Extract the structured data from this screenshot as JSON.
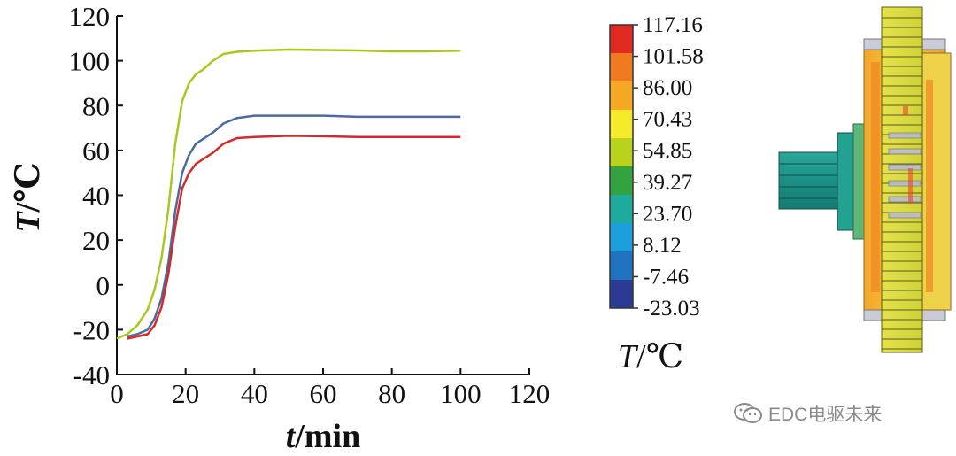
{
  "chart_data": {
    "type": "line",
    "xlabel_var": "t",
    "xlabel_unit": "/min",
    "ylabel_var": "T",
    "ylabel_unit": "/℃",
    "xlim": [
      0,
      120
    ],
    "ylim": [
      -40,
      120
    ],
    "xticks": [
      0,
      20,
      40,
      60,
      80,
      100,
      120
    ],
    "yticks": [
      -40,
      -20,
      0,
      20,
      40,
      60,
      80,
      100,
      120
    ],
    "series": [
      {
        "name": "green",
        "color": "#a8c81e",
        "x": [
          0,
          3,
          6,
          9,
          11,
          13,
          15,
          17,
          19,
          21,
          23,
          25,
          28,
          31,
          35,
          40,
          50,
          60,
          70,
          80,
          90,
          100
        ],
        "y": [
          -24,
          -22,
          -18,
          -11,
          -2,
          12,
          34,
          63,
          82,
          90,
          94,
          96,
          100,
          103,
          104,
          104.5,
          105,
          104.8,
          104.6,
          104.2,
          104.2,
          104.5
        ]
      },
      {
        "name": "blue",
        "color": "#4a6aa0",
        "x": [
          3,
          6,
          9,
          11,
          13,
          15,
          17,
          19,
          21,
          23,
          25,
          28,
          31,
          35,
          40,
          50,
          60,
          70,
          80,
          90,
          100
        ],
        "y": [
          -23,
          -22,
          -20,
          -15,
          -6,
          10,
          33,
          50,
          58,
          63,
          65,
          68,
          72,
          74.5,
          75.5,
          75.5,
          75.5,
          75,
          75,
          75,
          75
        ]
      },
      {
        "name": "red",
        "color": "#d42a2a",
        "x": [
          3,
          6,
          9,
          11,
          13,
          15,
          17,
          19,
          21,
          23,
          25,
          28,
          31,
          35,
          40,
          50,
          60,
          70,
          80,
          90,
          100
        ],
        "y": [
          -24,
          -23,
          -22,
          -18,
          -10,
          5,
          26,
          43,
          50,
          54,
          56,
          59,
          63,
          65.5,
          66,
          66.5,
          66.3,
          66,
          66,
          66,
          66
        ]
      }
    ]
  },
  "colorbar": {
    "labels": [
      "117.16",
      "101.58",
      "86.00",
      "70.43",
      "54.85",
      "39.27",
      "23.70",
      "8.12",
      "-7.46",
      "-23.03"
    ],
    "colors": [
      "#e02a22",
      "#f07a1e",
      "#f6a823",
      "#f5ea2a",
      "#b9d21e",
      "#32a33e",
      "#1cab9d",
      "#1b9fdd",
      "#1f73c0",
      "#2b3a95"
    ],
    "title_var": "T",
    "title_unit": "/℃"
  },
  "watermark": {
    "text": "EDC电驱未来"
  }
}
